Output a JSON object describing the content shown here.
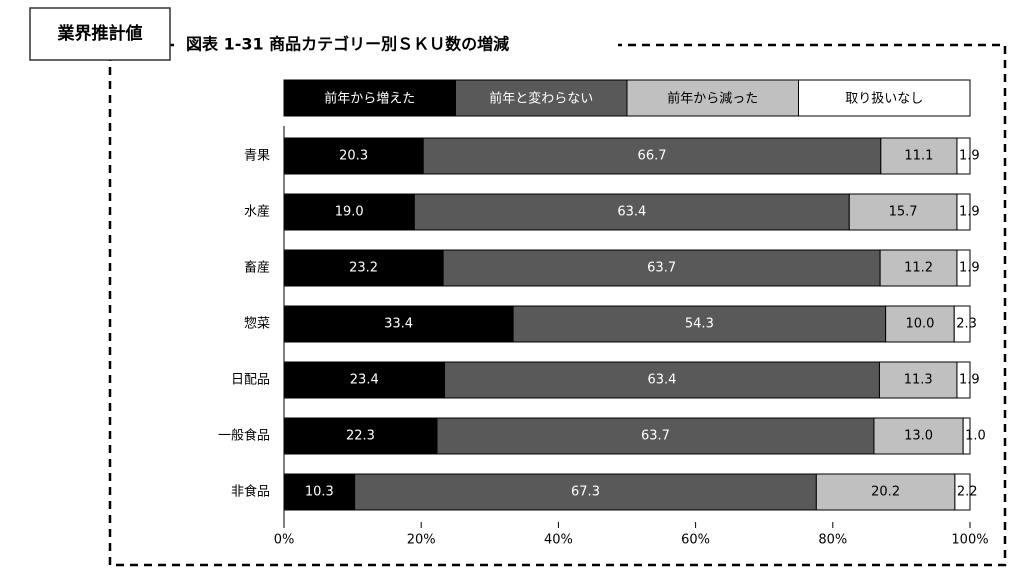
{
  "chart_data": {
    "type": "stacked-bar-horizontal",
    "note": "業界推計値",
    "title": "図表 1-31 商品カテゴリー別ＳＫＵ数の増減",
    "categories": [
      "青果",
      "水産",
      "畜産",
      "惣菜",
      "日配品",
      "一般食品",
      "非食品"
    ],
    "series": [
      {
        "name": "前年から増えた",
        "color": "#000000",
        "values": [
          20.3,
          19.0,
          23.2,
          33.4,
          23.4,
          22.3,
          10.3
        ],
        "value_labels": [
          "20.3",
          "19.0",
          "23.2",
          "33.4",
          "23.4",
          "22.3",
          "10.3"
        ]
      },
      {
        "name": "前年と変わらない",
        "color": "#595959",
        "values": [
          66.7,
          63.4,
          63.7,
          54.3,
          63.4,
          63.7,
          67.3
        ],
        "value_labels": [
          "66.7",
          "63.4",
          "63.7",
          "54.3",
          "63.4",
          "63.7",
          "67.3"
        ]
      },
      {
        "name": "前年から減った",
        "color": "#c0c0c0",
        "values": [
          11.1,
          15.7,
          11.2,
          10.0,
          11.3,
          13.0,
          20.2
        ],
        "value_labels": [
          "11.1",
          "15.7",
          "11.2",
          "10.0",
          "11.3",
          "13.0",
          "20.2"
        ]
      },
      {
        "name": "取り扱いなし",
        "color": "#ffffff",
        "values": [
          1.9,
          1.9,
          1.9,
          2.3,
          1.9,
          1.0,
          2.2
        ],
        "value_labels": [
          "1.9",
          "1.9",
          "1.9",
          "2.3",
          "1.9",
          "1.0",
          "2.2"
        ]
      }
    ],
    "xlim": [
      0,
      100
    ],
    "xticks": [
      {
        "value": 0,
        "label": "0%"
      },
      {
        "value": 20,
        "label": "20%"
      },
      {
        "value": 40,
        "label": "40%"
      },
      {
        "value": 60,
        "label": "60%"
      },
      {
        "value": 80,
        "label": "80%"
      },
      {
        "value": 100,
        "label": "100%"
      }
    ],
    "legend": "top"
  }
}
